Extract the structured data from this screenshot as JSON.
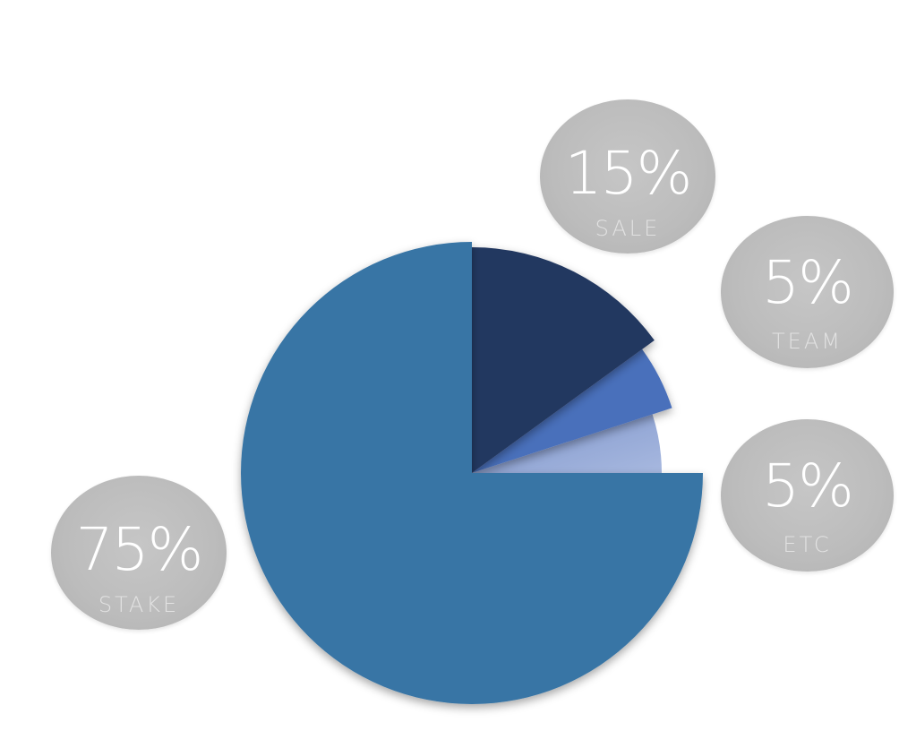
{
  "chart_data": {
    "type": "pie",
    "slices": [
      {
        "label": "STAKE",
        "value": 75,
        "value_text": "75%",
        "color": "#3874a5"
      },
      {
        "label": "SALE",
        "value": 15,
        "value_text": "15%",
        "color": "#243760"
      },
      {
        "label": "TEAM",
        "value": 5,
        "value_text": "5%",
        "color": "#4a6fbb"
      },
      {
        "label": "ETC",
        "value": 5,
        "value_text": "5%",
        "color": "#8ca3d4"
      }
    ],
    "title": ""
  },
  "colors": {
    "bubble": "#bebebe",
    "bubble_text": "#ffffff",
    "bubble_label": "#e2e2e2"
  }
}
